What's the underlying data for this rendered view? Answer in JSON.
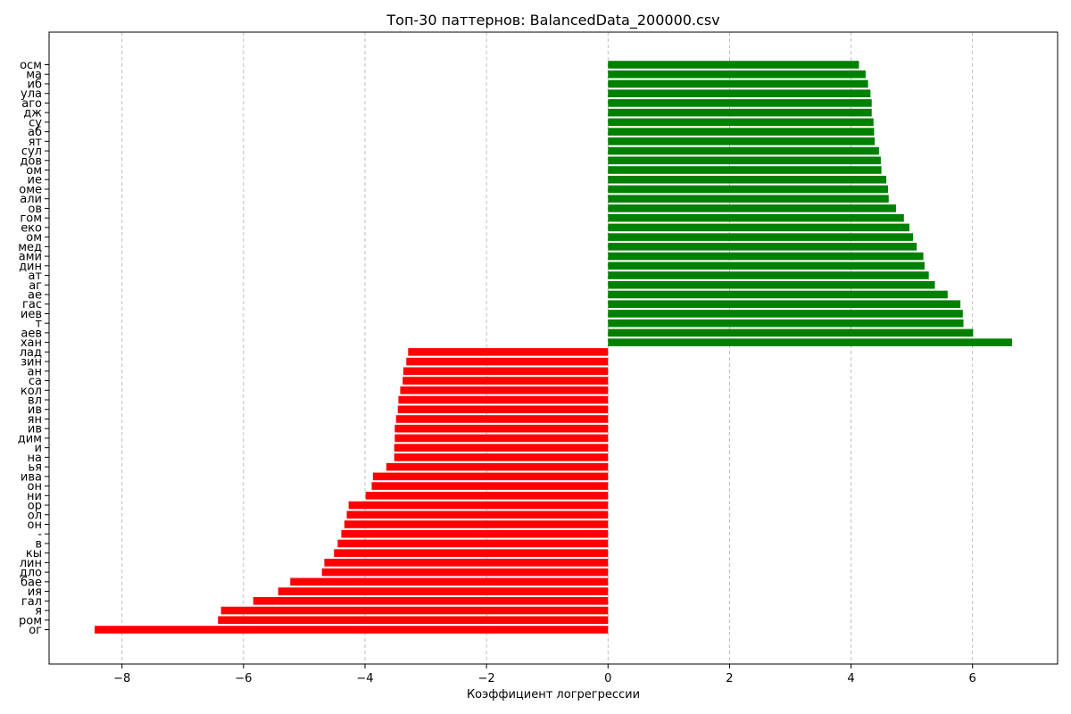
{
  "chart_data": {
    "type": "bar",
    "orientation": "horizontal",
    "title": "Топ-30 паттернов: BalancedData_200000.csv",
    "xlabel": "Коэффициент логрегрессии",
    "ylabel": "",
    "xlim": [
      -9.2,
      7.4
    ],
    "xticks": [
      -8,
      -6,
      -4,
      -2,
      0,
      2,
      4,
      6
    ],
    "xtick_labels": [
      "−8",
      "−6",
      "−4",
      "−2",
      "0",
      "2",
      "4",
      "6"
    ],
    "grid": "x-dashed",
    "colors": {
      "positive": "#008000",
      "negative": "#ff0000"
    },
    "categories": [
      "ог",
      "ром",
      "я",
      "гал",
      "ия",
      "бае",
      "дло",
      "лин",
      "кы",
      "в",
      "-",
      "он",
      "ол",
      "ор",
      "ни",
      "он",
      "ива",
      "ья",
      "на",
      "и",
      "дим",
      "ив",
      "ян",
      "ив",
      "вл",
      "кол",
      "са",
      "ан",
      "зин",
      "лад",
      "хан",
      "аев",
      "т",
      "иев",
      "гас",
      "ае",
      "аг",
      "ат",
      "дин",
      "ами",
      "мед",
      "ом",
      "еко",
      "гом",
      "ов",
      "али",
      "оме",
      "ие",
      "ом",
      "дов",
      "сул",
      "ят",
      "аб",
      "су",
      "дж",
      "аго",
      "ула",
      "иб",
      "ма",
      "осм"
    ],
    "values": [
      -8.45,
      -6.42,
      -6.37,
      -5.84,
      -5.43,
      -5.23,
      -4.71,
      -4.67,
      -4.51,
      -4.45,
      -4.39,
      -4.34,
      -4.3,
      -4.27,
      -3.99,
      -3.89,
      -3.87,
      -3.65,
      -3.52,
      -3.52,
      -3.51,
      -3.51,
      -3.49,
      -3.46,
      -3.45,
      -3.42,
      -3.38,
      -3.37,
      -3.32,
      -3.29,
      6.65,
      6.01,
      5.85,
      5.84,
      5.8,
      5.59,
      5.38,
      5.28,
      5.21,
      5.19,
      5.08,
      5.02,
      4.96,
      4.87,
      4.74,
      4.62,
      4.61,
      4.58,
      4.5,
      4.49,
      4.46,
      4.39,
      4.38,
      4.37,
      4.34,
      4.34,
      4.32,
      4.28,
      4.24,
      4.13
    ]
  }
}
